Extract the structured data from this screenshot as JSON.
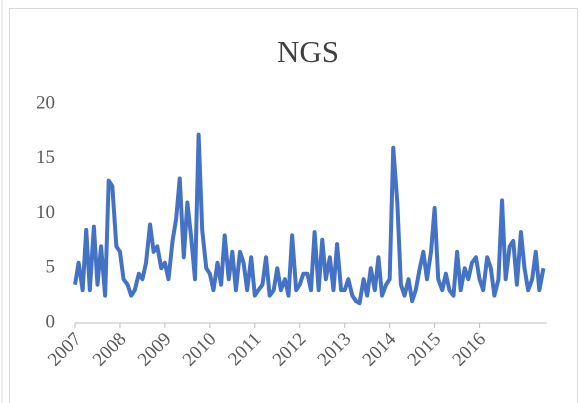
{
  "chart_data": {
    "type": "line",
    "title": "NGS",
    "x": [
      2007.0,
      2007.08,
      2007.17,
      2007.25,
      2007.33,
      2007.42,
      2007.5,
      2007.58,
      2007.67,
      2007.75,
      2007.83,
      2007.92,
      2008.0,
      2008.08,
      2008.17,
      2008.25,
      2008.33,
      2008.42,
      2008.5,
      2008.58,
      2008.67,
      2008.75,
      2008.83,
      2008.92,
      2009.0,
      2009.08,
      2009.17,
      2009.25,
      2009.33,
      2009.42,
      2009.5,
      2009.58,
      2009.67,
      2009.75,
      2009.83,
      2009.92,
      2010.0,
      2010.08,
      2010.17,
      2010.25,
      2010.33,
      2010.42,
      2010.5,
      2010.58,
      2010.67,
      2010.75,
      2010.83,
      2010.92,
      2011.0,
      2011.08,
      2011.17,
      2011.25,
      2011.33,
      2011.42,
      2011.5,
      2011.58,
      2011.67,
      2011.75,
      2011.83,
      2011.92,
      2012.0,
      2012.08,
      2012.17,
      2012.25,
      2012.33,
      2012.42,
      2012.5,
      2012.58,
      2012.67,
      2012.75,
      2012.83,
      2012.92,
      2013.0,
      2013.08,
      2013.17,
      2013.25,
      2013.33,
      2013.42,
      2013.5,
      2013.58,
      2013.67,
      2013.75,
      2013.83,
      2013.92,
      2014.0,
      2014.08,
      2014.17,
      2014.25,
      2014.33,
      2014.42,
      2014.5,
      2014.58,
      2014.67,
      2014.75,
      2014.83,
      2014.92,
      2015.0,
      2015.08,
      2015.17,
      2015.25,
      2015.33,
      2015.42,
      2015.5,
      2015.58,
      2015.67,
      2015.75,
      2015.83,
      2015.92,
      2016.0,
      2016.08,
      2016.17,
      2016.25,
      2016.33,
      2016.42,
      2016.5,
      2016.58,
      2016.67,
      2016.75,
      2016.83,
      2016.92,
      2017.0,
      2017.08,
      2017.17,
      2017.25,
      2017.33,
      2017.42
    ],
    "series": [
      {
        "color": "#4472c4",
        "values": [
          3.5,
          5.5,
          3,
          8.5,
          3,
          8.8,
          3.5,
          7,
          2.5,
          13,
          12.5,
          7,
          6.5,
          4,
          3.5,
          2.5,
          3,
          4.5,
          4,
          5.5,
          9,
          6.5,
          7,
          5,
          5.5,
          4,
          7.5,
          9.5,
          13.2,
          6,
          11,
          8,
          4,
          17.2,
          8.5,
          5,
          4.5,
          3,
          5.5,
          3.5,
          8,
          4,
          6.5,
          3,
          6.5,
          5.5,
          3,
          6,
          2.5,
          3,
          3.5,
          6,
          2.5,
          3,
          5,
          3,
          4,
          2.5,
          8,
          3,
          3.5,
          4.5,
          4.5,
          3,
          8.3,
          3,
          7.6,
          4,
          6,
          3,
          7.2,
          3,
          3,
          4,
          2.5,
          2,
          1.8,
          4,
          2.5,
          5,
          3,
          6,
          2.5,
          3.5,
          4,
          16,
          11,
          3.5,
          2.5,
          4,
          2,
          3,
          5,
          6.5,
          4,
          6.5,
          10.5,
          4,
          3,
          4.5,
          3,
          2.5,
          6.5,
          3,
          5,
          4,
          5.5,
          6,
          4,
          3,
          6,
          5,
          2.5,
          4,
          11.2,
          4,
          7,
          7.5,
          3.5,
          8.3,
          5,
          3,
          4,
          6.5,
          3,
          5
        ]
      }
    ],
    "xlim": [
      2007,
      2017.5
    ],
    "xticks": [
      2007,
      2008,
      2009,
      2010,
      2011,
      2012,
      2013,
      2014,
      2015,
      2016
    ],
    "ylim": [
      0,
      20
    ],
    "yticks": [
      0,
      5,
      10,
      15,
      20
    ]
  }
}
